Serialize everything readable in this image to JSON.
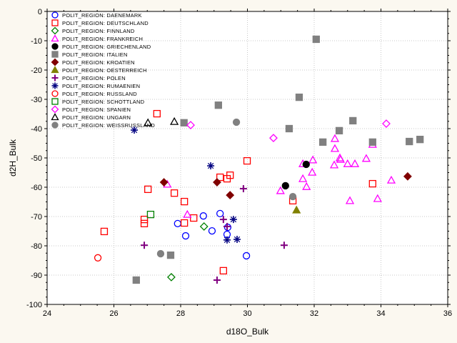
{
  "chart_data": {
    "type": "scatter",
    "xlabel": "d18O_Bulk",
    "ylabel": "d2H_Bulk",
    "xlim": [
      24,
      36
    ],
    "ylim": [
      -100,
      0
    ],
    "xticks": [
      24,
      26,
      28,
      30,
      32,
      34,
      36
    ],
    "yticks": [
      0,
      -10,
      -20,
      -30,
      -40,
      -50,
      -60,
      -70,
      -80,
      -90,
      -100
    ],
    "grid": true,
    "legend_position": "top-left",
    "series": [
      {
        "name": "POLIT_REGION: DAENEMARK",
        "marker": "circle-open",
        "color": "#0000ff",
        "points": [
          [
            27.91,
            -72.4
          ],
          [
            28.15,
            -76.6
          ],
          [
            28.68,
            -69.8
          ],
          [
            28.94,
            -74.9
          ],
          [
            29.18,
            -69.0
          ],
          [
            29.39,
            -76.1
          ],
          [
            29.41,
            -73.7
          ],
          [
            29.97,
            -83.4
          ]
        ]
      },
      {
        "name": "POLIT_REGION: DEUTSCHLAND",
        "marker": "square-open",
        "color": "#ff0000",
        "points": [
          [
            27.29,
            -34.9
          ],
          [
            25.71,
            -75.1
          ],
          [
            26.91,
            -71.0
          ],
          [
            26.91,
            -72.4
          ],
          [
            27.02,
            -60.7
          ],
          [
            27.81,
            -62.0
          ],
          [
            28.11,
            -64.9
          ],
          [
            28.11,
            -72.2
          ],
          [
            28.39,
            -70.5
          ],
          [
            29.18,
            -56.6
          ],
          [
            29.39,
            -57.1
          ],
          [
            29.48,
            -55.9
          ],
          [
            29.99,
            -51.0
          ],
          [
            29.28,
            -88.5
          ],
          [
            31.36,
            -64.6
          ],
          [
            33.75,
            -58.8
          ]
        ]
      },
      {
        "name": "POLIT_REGION: FINNLAND",
        "marker": "diamond-open",
        "color": "#008000",
        "points": [
          [
            28.7,
            -73.4
          ],
          [
            27.72,
            -90.7
          ]
        ]
      },
      {
        "name": "POLIT_REGION: FRANKREICH",
        "marker": "triangle-open",
        "color": "#ff00ff",
        "points": [
          [
            27.6,
            -59.0
          ],
          [
            28.2,
            -69.3
          ],
          [
            31.66,
            -52.0
          ],
          [
            31.96,
            -50.7
          ],
          [
            31.66,
            -57.1
          ],
          [
            31.94,
            -54.9
          ],
          [
            30.99,
            -61.2
          ],
          [
            31.77,
            -59.8
          ],
          [
            32.62,
            -43.4
          ],
          [
            32.62,
            -46.8
          ],
          [
            32.6,
            -52.4
          ],
          [
            32.77,
            -50.0
          ],
          [
            32.79,
            -50.5
          ],
          [
            33.0,
            -52.0
          ],
          [
            33.22,
            -52.0
          ],
          [
            33.56,
            -50.2
          ],
          [
            33.75,
            -45.4
          ],
          [
            34.31,
            -57.6
          ],
          [
            33.07,
            -64.6
          ],
          [
            33.9,
            -63.9
          ]
        ]
      },
      {
        "name": "POLIT_REGION: GRIECHENLAND",
        "marker": "circle-filled",
        "color": "#000000",
        "points": [
          [
            31.76,
            -52.2
          ],
          [
            31.14,
            -59.5
          ]
        ]
      },
      {
        "name": "POLIT_REGION: ITALIEN",
        "marker": "square-filled",
        "color": "#808080",
        "points": [
          [
            32.06,
            -9.5
          ],
          [
            31.55,
            -29.3
          ],
          [
            31.25,
            -40.0
          ],
          [
            32.26,
            -44.6
          ],
          [
            32.75,
            -40.7
          ],
          [
            33.16,
            -37.3
          ],
          [
            33.75,
            -44.6
          ],
          [
            34.85,
            -44.4
          ],
          [
            35.17,
            -43.7
          ],
          [
            29.13,
            -32.0
          ],
          [
            28.1,
            -38.0
          ],
          [
            27.7,
            -83.2
          ],
          [
            26.67,
            -91.7
          ]
        ]
      },
      {
        "name": "POLIT_REGION: KROATIEN",
        "marker": "diamond-filled",
        "color": "#800000",
        "points": [
          [
            27.5,
            -58.3
          ],
          [
            29.09,
            -58.3
          ],
          [
            29.48,
            -62.7
          ],
          [
            34.8,
            -56.3
          ]
        ]
      },
      {
        "name": "POLIT_REGION: OESTERREICH",
        "marker": "triangle-filled",
        "color": "#808000",
        "points": [
          [
            31.47,
            -67.8
          ]
        ]
      },
      {
        "name": "POLIT_REGION: POLEN",
        "marker": "plus",
        "color": "#800080",
        "points": [
          [
            29.88,
            -60.5
          ],
          [
            29.28,
            -71.0
          ],
          [
            29.39,
            -73.4
          ],
          [
            26.91,
            -79.8
          ],
          [
            29.09,
            -91.7
          ],
          [
            31.1,
            -79.8
          ]
        ]
      },
      {
        "name": "POLIT_REGION: RUMAENIEN",
        "marker": "asterisk",
        "color": "#000080",
        "points": [
          [
            26.61,
            -40.5
          ],
          [
            28.9,
            -52.7
          ],
          [
            29.58,
            -71.0
          ],
          [
            29.39,
            -78.0
          ],
          [
            29.69,
            -77.8
          ]
        ]
      },
      {
        "name": "POLIT_REGION: RUSSLAND",
        "marker": "circle-open",
        "color": "#ff0000",
        "points": [
          [
            25.52,
            -84.1
          ]
        ]
      },
      {
        "name": "POLIT_REGION: SCHOTTLAND",
        "marker": "square-open",
        "color": "#008000",
        "points": [
          [
            27.1,
            -69.3
          ]
        ]
      },
      {
        "name": "POLIT_REGION: SPANIEN",
        "marker": "diamond-open",
        "color": "#ff00ff",
        "points": [
          [
            28.3,
            -38.8
          ],
          [
            30.78,
            -43.2
          ],
          [
            34.16,
            -38.3
          ]
        ]
      },
      {
        "name": "POLIT_REGION: UNGARN",
        "marker": "triangle-open",
        "color": "#000000",
        "points": [
          [
            27.02,
            -38.0
          ],
          [
            27.81,
            -37.6
          ]
        ]
      },
      {
        "name": "POLIT_REGION: WEISSRUSSLAND",
        "marker": "circle-filled",
        "color": "#808080",
        "points": [
          [
            29.67,
            -37.8
          ],
          [
            27.4,
            -82.7
          ],
          [
            31.36,
            -63.2
          ]
        ]
      }
    ]
  }
}
